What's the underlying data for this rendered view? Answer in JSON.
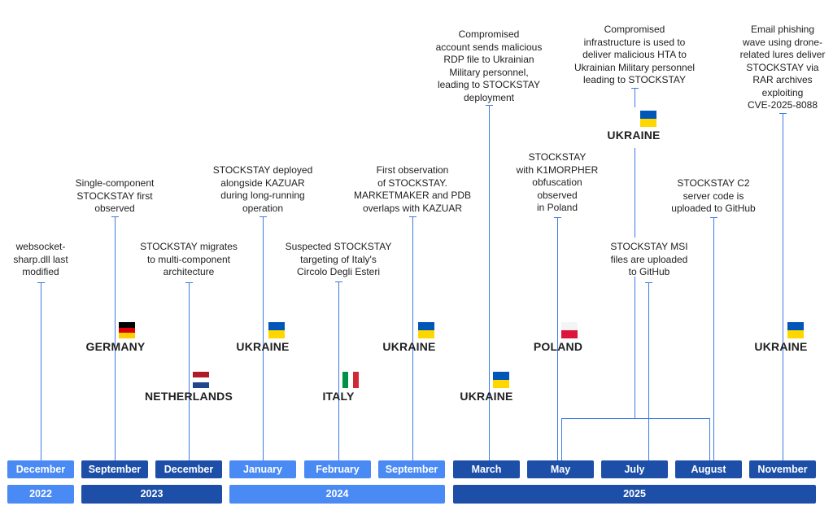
{
  "colors": {
    "light_blue": "#4a8af4",
    "dark_blue": "#1d4fa8",
    "line": "#3c7ae4"
  },
  "events": {
    "e1": [
      "websocket-",
      "sharp.dll last",
      "modified"
    ],
    "e2": [
      "Single-component",
      "STOCKSTAY first",
      "observed"
    ],
    "e3": [
      "STOCKSTAY migrates",
      "to multi-component",
      "architecture"
    ],
    "e4": [
      "STOCKSTAY deployed",
      "alongside KAZUAR",
      "during long-running",
      "operation"
    ],
    "e5": [
      "Suspected STOCKSTAY",
      "targeting of Italy's",
      "Circolo Degli Esteri"
    ],
    "e6": [
      "First observation",
      "of STOCKSTAY.",
      "MARKETMAKER and PDB",
      "overlaps with KAZUAR"
    ],
    "e7": [
      "Compromised",
      "account sends malicious",
      "RDP file to Ukrainian",
      "Military personnel,",
      "leading to STOCKSTAY",
      "deployment"
    ],
    "e8": [
      "STOCKSTAY",
      "with K1MORPHER",
      "obfuscation",
      "observed",
      "in Poland"
    ],
    "e9": [
      "Compromised",
      "infrastructure is used to",
      "deliver malicious HTA to",
      "Ukrainian Military personnel",
      "leading to STOCKSTAY"
    ],
    "e10": [
      "STOCKSTAY MSI",
      "files are uploaded",
      "to GitHub"
    ],
    "e11": [
      "STOCKSTAY C2",
      "server code is",
      "uploaded to GitHub"
    ],
    "e12": [
      "Email phishing",
      "wave using drone-",
      "related lures deliver",
      "STOCKSTAY via",
      "RAR archives",
      "exploiting",
      "CVE-2025-8088"
    ]
  },
  "countries": {
    "germany": "GERMANY",
    "netherlands": "NETHERLANDS",
    "ukraine_jan": "UKRAINE",
    "italy": "ITALY",
    "ukraine_sep": "UKRAINE",
    "ukraine_mar": "UKRAINE",
    "poland": "POLAND",
    "ukraine_jul": "UKRAINE",
    "ukraine_nov": "UKRAINE"
  },
  "months": [
    "December",
    "September",
    "December",
    "January",
    "February",
    "September",
    "March",
    "May",
    "July",
    "August",
    "November"
  ],
  "years": [
    "2022",
    "2023",
    "2024",
    "2025"
  ],
  "flags": {
    "germany": [
      "#000000",
      "#dd0000",
      "#ffce00"
    ],
    "netherlands": [
      "#ae1c28",
      "#ffffff",
      "#21468b"
    ],
    "ukraine": [
      "#0057b7",
      "#ffd700"
    ],
    "poland": [
      "#ffffff",
      "#dc143c"
    ],
    "italy": [
      "#009246",
      "#ffffff",
      "#ce2b37"
    ]
  }
}
